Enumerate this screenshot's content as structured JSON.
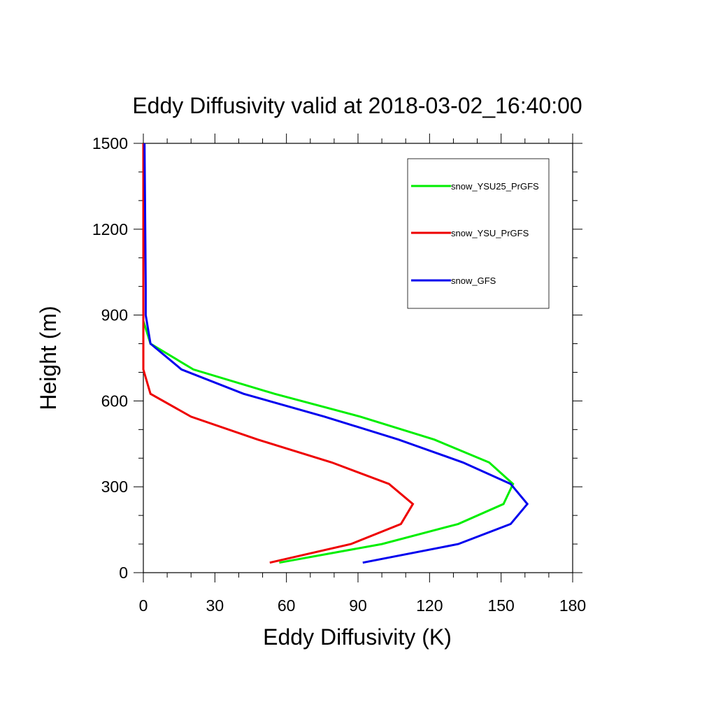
{
  "chart_data": {
    "type": "line",
    "title": "Eddy Diffusivity valid at 2018-03-02_16:40:00",
    "xlabel": "Eddy Diffusivity (K)",
    "ylabel": "Height (m)",
    "xlim": [
      0,
      180
    ],
    "ylim": [
      0,
      1500
    ],
    "xticks": [
      0,
      30,
      60,
      90,
      120,
      150,
      180
    ],
    "yticks": [
      0,
      300,
      600,
      900,
      1200,
      1500
    ],
    "x_minor_step": 10,
    "y_minor_step": 100,
    "grid": false,
    "legend_position": "top-right",
    "series": [
      {
        "name": "snow_YSU25_PrGFS",
        "color": "#00ee00",
        "points": [
          [
            57,
            35
          ],
          [
            100,
            100
          ],
          [
            132,
            170
          ],
          [
            151,
            240
          ],
          [
            155,
            310
          ],
          [
            145,
            385
          ],
          [
            122,
            465
          ],
          [
            91,
            545
          ],
          [
            55,
            625
          ],
          [
            21,
            710
          ],
          [
            3,
            800
          ],
          [
            0,
            880
          ],
          [
            0,
            1000
          ],
          [
            0,
            1500
          ]
        ]
      },
      {
        "name": "snow_YSU_PrGFS",
        "color": "#ee0000",
        "points": [
          [
            53,
            35
          ],
          [
            87,
            100
          ],
          [
            108,
            170
          ],
          [
            113,
            240
          ],
          [
            103,
            310
          ],
          [
            79,
            385
          ],
          [
            48,
            465
          ],
          [
            20,
            545
          ],
          [
            3,
            625
          ],
          [
            0,
            710
          ],
          [
            0,
            800
          ],
          [
            0,
            900
          ],
          [
            0,
            1500
          ]
        ]
      },
      {
        "name": "snow_GFS",
        "color": "#0000ee",
        "points": [
          [
            92,
            35
          ],
          [
            132,
            100
          ],
          [
            154,
            170
          ],
          [
            161,
            240
          ],
          [
            154,
            310
          ],
          [
            134,
            385
          ],
          [
            107,
            465
          ],
          [
            76,
            545
          ],
          [
            42,
            625
          ],
          [
            16,
            710
          ],
          [
            3,
            800
          ],
          [
            1,
            900
          ],
          [
            1,
            1000
          ],
          [
            0.5,
            1500
          ]
        ]
      }
    ]
  }
}
